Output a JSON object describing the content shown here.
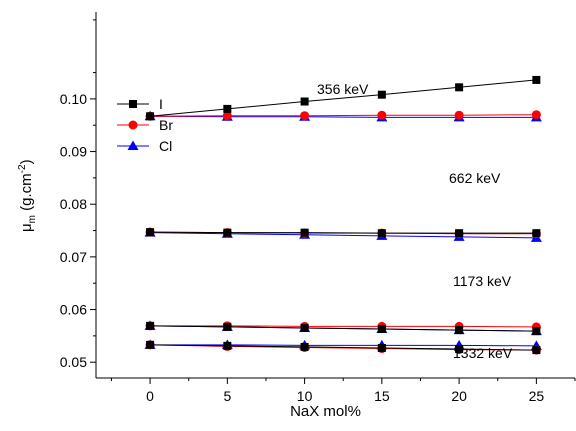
{
  "chart_data": {
    "type": "line",
    "title": "",
    "xlabel": "NaX mol%",
    "ylabel": {
      "prefix": "μ",
      "sub": "m",
      "unit_open": " (g.cm",
      "sup": "-2",
      "unit_close": ")"
    },
    "x": [
      0,
      5,
      10,
      15,
      20,
      25
    ],
    "xlim": [
      -3.5,
      27.5
    ],
    "ylim": [
      0.047,
      0.1165
    ],
    "x_ticks": [
      "0",
      "5",
      "10",
      "15",
      "20",
      "25"
    ],
    "y_ticks": [
      "0.05",
      "0.06",
      "0.07",
      "0.08",
      "0.09",
      "0.10"
    ],
    "grid": false,
    "legend_position": "upper-left",
    "legend": [
      {
        "label": "I",
        "color": "#000000",
        "marker": "square"
      },
      {
        "label": "Br",
        "color": "#ff0000",
        "marker": "circle"
      },
      {
        "label": "Cl",
        "color": "#0000ff",
        "marker": "triangle"
      }
    ],
    "annotations": [
      "356 keV",
      "662 keV",
      "1173 keV",
      "1332 keV"
    ],
    "groups": [
      {
        "energy": "356 keV",
        "series": [
          {
            "name": "I",
            "values": [
              0.0967,
              0.0981,
              0.0995,
              0.1008,
              0.1022,
              0.1036
            ]
          },
          {
            "name": "Br",
            "values": [
              0.0967,
              0.0968,
              0.0968,
              0.0969,
              0.0969,
              0.097
            ]
          },
          {
            "name": "Cl",
            "values": [
              0.0967,
              0.0966,
              0.0966,
              0.0965,
              0.0965,
              0.0965
            ]
          }
        ]
      },
      {
        "energy": "662 keV",
        "series": [
          {
            "name": "I",
            "values": [
              0.0747,
              0.0746,
              0.0746,
              0.0745,
              0.0745,
              0.0745
            ]
          },
          {
            "name": "Br",
            "values": [
              0.0747,
              0.0746,
              0.0745,
              0.0745,
              0.0744,
              0.0744
            ]
          },
          {
            "name": "Cl",
            "values": [
              0.0746,
              0.0744,
              0.0742,
              0.074,
              0.0738,
              0.0736
            ]
          }
        ]
      },
      {
        "energy": "1173 keV",
        "series": [
          {
            "name": "I",
            "values": [
              0.0569,
              0.0567,
              0.0565,
              0.0563,
              0.0561,
              0.0559
            ]
          },
          {
            "name": "Br",
            "values": [
              0.0569,
              0.0569,
              0.0568,
              0.0568,
              0.0568,
              0.0567
            ]
          },
          {
            "name": "Cl",
            "values": [
              0.0569,
              0.0567,
              0.0565,
              0.0563,
              0.0561,
              0.0559
            ]
          }
        ]
      },
      {
        "energy": "1332 keV",
        "series": [
          {
            "name": "I",
            "values": [
              0.0533,
              0.0531,
              0.0529,
              0.0527,
              0.0525,
              0.0523
            ]
          },
          {
            "name": "Br",
            "values": [
              0.0533,
              0.053,
              0.0528,
              0.0526,
              0.0524,
              0.0523
            ]
          },
          {
            "name": "Cl",
            "values": [
              0.0533,
              0.0533,
              0.0532,
              0.0532,
              0.0532,
              0.0531
            ]
          }
        ]
      }
    ]
  }
}
